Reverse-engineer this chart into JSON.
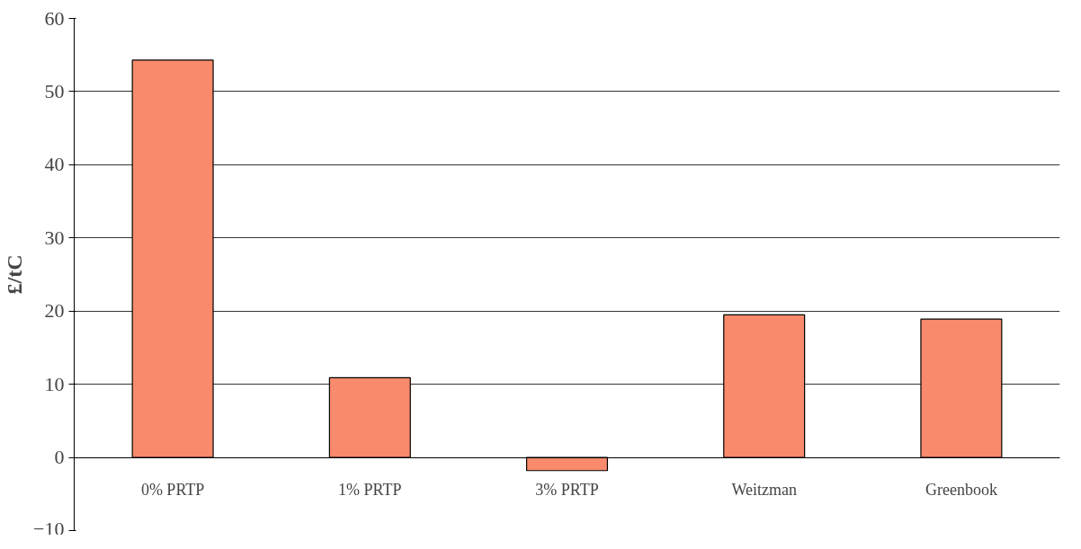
{
  "chart_data": {
    "type": "bar",
    "ylabel": "£/tC",
    "categories": [
      "0% PRTP",
      "1% PRTP",
      "3% PRTP",
      "Weitzman",
      "Greenbook"
    ],
    "values": [
      54.3,
      10.9,
      -1.8,
      19.5,
      18.9
    ],
    "color": "#f98a6c",
    "ylim": [
      -10,
      60
    ],
    "yticks": [
      -10,
      0,
      10,
      20,
      30,
      40,
      50,
      60
    ],
    "grid": "y"
  }
}
